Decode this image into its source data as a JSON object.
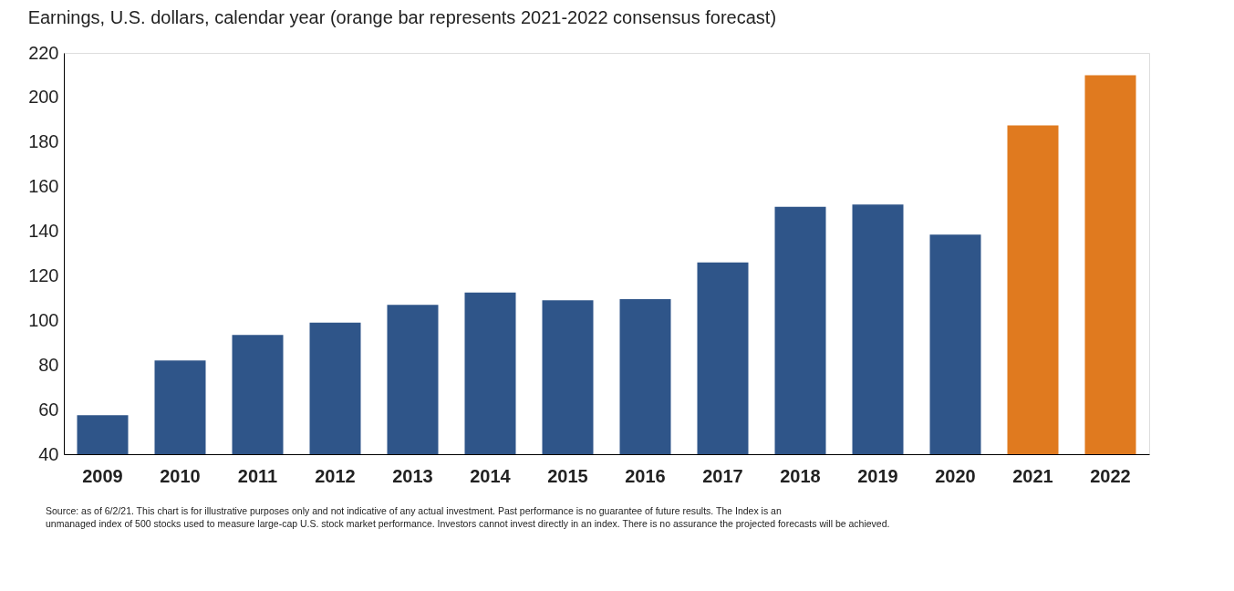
{
  "chart_data": {
    "type": "bar",
    "title": "Earnings, U.S. dollars, calendar year (orange bar represents 2021-2022 consensus forecast)",
    "categories": [
      "2009",
      "2010",
      "2011",
      "2012",
      "2013",
      "2014",
      "2015",
      "2016",
      "2017",
      "2018",
      "2019",
      "2020",
      "2021",
      "2022"
    ],
    "values": [
      57.5,
      82,
      93.5,
      99,
      107,
      112.5,
      109,
      109.5,
      126,
      151,
      152,
      138.5,
      187.5,
      210
    ],
    "colors": [
      "#2f5589",
      "#2f5589",
      "#2f5589",
      "#2f5589",
      "#2f5589",
      "#2f5589",
      "#2f5589",
      "#2f5589",
      "#2f5589",
      "#2f5589",
      "#2f5589",
      "#2f5589",
      "#e07a1f",
      "#e07a1f"
    ],
    "ylim": [
      40,
      220
    ],
    "yticks": [
      40,
      60,
      80,
      100,
      120,
      140,
      160,
      180,
      200,
      220
    ],
    "grid": false,
    "annotations": [
      "Source: as of 6/2/21. This chart is for illustrative purposes only and not indicative of any actual investment. Past performance is no guarantee of future results. The Index is an",
      "unmanaged index of 500 stocks used to measure large-cap U.S. stock market performance. Investors cannot invest directly in an index. There is no assurance the projected forecasts will be achieved."
    ]
  }
}
